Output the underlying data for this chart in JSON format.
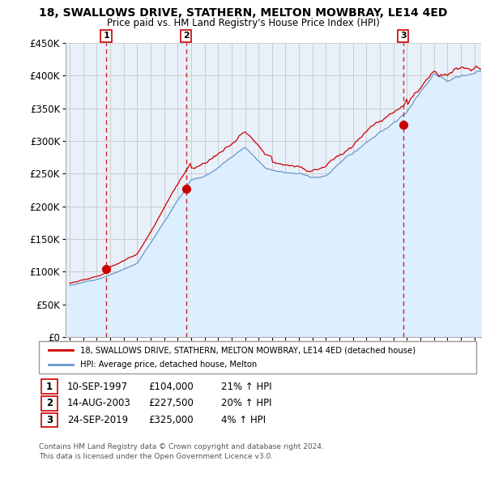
{
  "title": "18, SWALLOWS DRIVE, STATHERN, MELTON MOWBRAY, LE14 4ED",
  "subtitle": "Price paid vs. HM Land Registry's House Price Index (HPI)",
  "ylim": [
    0,
    450000
  ],
  "yticks": [
    0,
    50000,
    100000,
    150000,
    200000,
    250000,
    300000,
    350000,
    400000,
    450000
  ],
  "sale_year_floats": [
    1997.71,
    2003.62,
    2019.73
  ],
  "sale_prices": [
    104000,
    227500,
    325000
  ],
  "sale_labels": [
    "1",
    "2",
    "3"
  ],
  "sale_info": [
    {
      "label": "1",
      "date": "10-SEP-1997",
      "price": "£104,000",
      "hpi": "21% ↑ HPI"
    },
    {
      "label": "2",
      "date": "14-AUG-2003",
      "price": "£227,500",
      "hpi": "20% ↑ HPI"
    },
    {
      "label": "3",
      "date": "24-SEP-2019",
      "price": "£325,000",
      "hpi": "4% ↑ HPI"
    }
  ],
  "legend_line1": "18, SWALLOWS DRIVE, STATHERN, MELTON MOWBRAY, LE14 4ED (detached house)",
  "legend_line2": "HPI: Average price, detached house, Melton",
  "footer1": "Contains HM Land Registry data © Crown copyright and database right 2024.",
  "footer2": "This data is licensed under the Open Government Licence v3.0.",
  "red_color": "#cc0000",
  "blue_color": "#6699cc",
  "blue_fill": "#ddeeff",
  "grid_color": "#cccccc",
  "background_color": "#ffffff",
  "plot_bg_color": "#e8f0fa",
  "xstart": 1995.0,
  "xend": 2025.5
}
